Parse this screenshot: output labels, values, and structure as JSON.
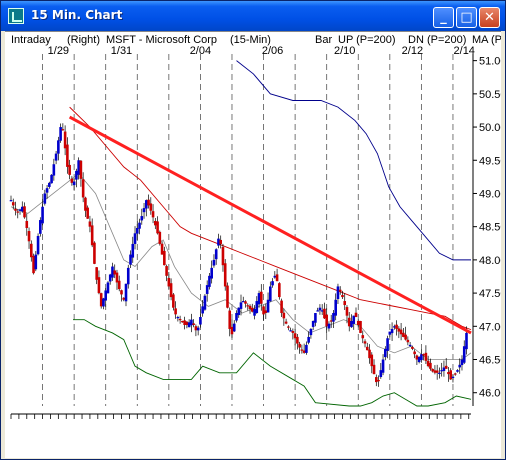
{
  "window": {
    "title": "15 Min. Chart",
    "minimize_glyph": "_",
    "maximize_glyph": "□",
    "close_glyph": "✕"
  },
  "header": {
    "intraday": "Intraday",
    "axis_side": "(Right)",
    "symbol": "MSFT - Microsoft Corp",
    "interval": "(15-Min)",
    "style": "Bar",
    "up_label": "UP (P=200)",
    "dn_label": "DN (P=200)",
    "ma_label": "MA (P="
  },
  "colors": {
    "up_label": "#0000cc",
    "dn_label": "#007700",
    "ma_label": "#cc0000",
    "up_bar": "#0000cc",
    "down_bar": "#cc0000",
    "trendline": "#ff2020",
    "upper_band": "#00008b",
    "lower_band": "#006400",
    "ma_line": "#cc0000",
    "grey_ma": "#888888"
  },
  "chart_data": {
    "type": "candlestick",
    "date_labels": [
      "1/29",
      "1/31",
      "2/04",
      "2/06",
      "2/10",
      "2/12",
      "2/14"
    ],
    "y_ticks": [
      "51.00",
      "50.50",
      "50.00",
      "49.50",
      "49.00",
      "48.50",
      "48.00",
      "47.50",
      "47.00",
      "46.50",
      "46.00"
    ],
    "ylim": [
      45.8,
      51.1
    ],
    "price_path": [
      [
        0,
        48.9
      ],
      [
        5,
        48.7
      ],
      [
        10,
        48.8
      ],
      [
        15,
        48.4
      ],
      [
        20,
        47.8
      ],
      [
        25,
        48.5
      ],
      [
        30,
        49.0
      ],
      [
        35,
        49.2
      ],
      [
        40,
        49.6
      ],
      [
        45,
        50.1
      ],
      [
        50,
        49.4
      ],
      [
        55,
        49.1
      ],
      [
        60,
        49.5
      ],
      [
        65,
        48.8
      ],
      [
        70,
        48.5
      ],
      [
        75,
        47.8
      ],
      [
        80,
        47.3
      ],
      [
        85,
        47.6
      ],
      [
        90,
        47.9
      ],
      [
        95,
        47.6
      ],
      [
        100,
        47.4
      ],
      [
        105,
        48.0
      ],
      [
        110,
        48.4
      ],
      [
        115,
        48.6
      ],
      [
        120,
        48.9
      ],
      [
        125,
        48.7
      ],
      [
        130,
        48.4
      ],
      [
        135,
        48.0
      ],
      [
        140,
        47.6
      ],
      [
        145,
        47.2
      ],
      [
        150,
        47.1
      ],
      [
        155,
        47.0
      ],
      [
        160,
        47.1
      ],
      [
        165,
        46.9
      ],
      [
        170,
        47.3
      ],
      [
        175,
        47.7
      ],
      [
        180,
        48.0
      ],
      [
        185,
        48.4
      ],
      [
        190,
        47.6
      ],
      [
        195,
        46.8
      ],
      [
        200,
        47.2
      ],
      [
        205,
        47.4
      ],
      [
        210,
        47.3
      ],
      [
        215,
        47.2
      ],
      [
        220,
        47.5
      ],
      [
        225,
        47.1
      ],
      [
        230,
        47.6
      ],
      [
        235,
        47.8
      ],
      [
        240,
        47.2
      ],
      [
        245,
        47.0
      ],
      [
        250,
        46.9
      ],
      [
        255,
        46.7
      ],
      [
        260,
        46.6
      ],
      [
        265,
        46.9
      ],
      [
        270,
        47.2
      ],
      [
        275,
        47.3
      ],
      [
        280,
        47.0
      ],
      [
        285,
        47.1
      ],
      [
        290,
        47.6
      ],
      [
        295,
        47.4
      ],
      [
        300,
        47.0
      ],
      [
        305,
        47.2
      ],
      [
        310,
        46.9
      ],
      [
        315,
        46.7
      ],
      [
        320,
        46.4
      ],
      [
        325,
        46.1
      ],
      [
        330,
        46.5
      ],
      [
        335,
        46.9
      ],
      [
        340,
        47.0
      ],
      [
        345,
        46.9
      ],
      [
        350,
        46.8
      ],
      [
        355,
        46.7
      ],
      [
        360,
        46.5
      ],
      [
        365,
        46.6
      ],
      [
        370,
        46.4
      ],
      [
        375,
        46.3
      ],
      [
        380,
        46.3
      ],
      [
        385,
        46.4
      ],
      [
        390,
        46.2
      ],
      [
        395,
        46.3
      ],
      [
        400,
        46.5
      ],
      [
        405,
        47.0
      ]
    ],
    "trendline": [
      [
        52,
        50.15
      ],
      [
        408,
        46.9
      ]
    ],
    "upper_band": [
      [
        200,
        51.0
      ],
      [
        215,
        50.8
      ],
      [
        230,
        50.5
      ],
      [
        250,
        50.4
      ],
      [
        275,
        50.4
      ],
      [
        290,
        50.3
      ],
      [
        305,
        50.1
      ],
      [
        315,
        49.9
      ],
      [
        325,
        49.6
      ],
      [
        335,
        49.1
      ],
      [
        345,
        48.8
      ],
      [
        355,
        48.6
      ],
      [
        365,
        48.4
      ],
      [
        380,
        48.1
      ],
      [
        392,
        48.0
      ],
      [
        408,
        48.0
      ]
    ],
    "lower_band": [
      [
        55,
        47.1
      ],
      [
        65,
        47.1
      ],
      [
        75,
        47.0
      ],
      [
        90,
        46.9
      ],
      [
        100,
        46.8
      ],
      [
        110,
        46.4
      ],
      [
        120,
        46.3
      ],
      [
        135,
        46.2
      ],
      [
        145,
        46.2
      ],
      [
        160,
        46.2
      ],
      [
        170,
        46.4
      ],
      [
        185,
        46.3
      ],
      [
        200,
        46.3
      ],
      [
        215,
        46.6
      ],
      [
        230,
        46.4
      ],
      [
        250,
        46.2
      ],
      [
        260,
        46.1
      ],
      [
        270,
        45.85
      ],
      [
        300,
        45.8
      ],
      [
        310,
        45.8
      ],
      [
        320,
        45.85
      ],
      [
        330,
        45.95
      ],
      [
        340,
        46.0
      ],
      [
        350,
        45.9
      ],
      [
        360,
        45.8
      ],
      [
        370,
        45.8
      ],
      [
        385,
        45.85
      ],
      [
        395,
        45.95
      ],
      [
        408,
        45.9
      ]
    ],
    "ma_line": [
      [
        52,
        50.3
      ],
      [
        70,
        50.0
      ],
      [
        85,
        49.7
      ],
      [
        100,
        49.4
      ],
      [
        115,
        49.2
      ],
      [
        130,
        48.9
      ],
      [
        140,
        48.7
      ],
      [
        150,
        48.5
      ],
      [
        160,
        48.4
      ],
      [
        175,
        48.3
      ],
      [
        190,
        48.2
      ],
      [
        205,
        48.1
      ],
      [
        220,
        48.0
      ],
      [
        235,
        47.9
      ],
      [
        250,
        47.8
      ],
      [
        265,
        47.7
      ],
      [
        280,
        47.6
      ],
      [
        295,
        47.5
      ],
      [
        310,
        47.4
      ],
      [
        325,
        47.35
      ],
      [
        340,
        47.3
      ],
      [
        355,
        47.25
      ],
      [
        370,
        47.2
      ],
      [
        385,
        47.15
      ],
      [
        400,
        47.0
      ],
      [
        408,
        46.95
      ]
    ],
    "grey_ma": [
      [
        0,
        48.8
      ],
      [
        15,
        48.7
      ],
      [
        30,
        48.9
      ],
      [
        45,
        49.1
      ],
      [
        60,
        49.3
      ],
      [
        75,
        49.0
      ],
      [
        90,
        48.4
      ],
      [
        100,
        48.0
      ],
      [
        110,
        47.9
      ],
      [
        125,
        48.2
      ],
      [
        135,
        48.3
      ],
      [
        145,
        47.9
      ],
      [
        160,
        47.5
      ],
      [
        175,
        47.3
      ],
      [
        190,
        47.4
      ],
      [
        205,
        47.2
      ],
      [
        220,
        47.3
      ],
      [
        235,
        47.4
      ],
      [
        250,
        47.1
      ],
      [
        265,
        46.9
      ],
      [
        280,
        47.0
      ],
      [
        295,
        47.1
      ],
      [
        310,
        47.0
      ],
      [
        325,
        46.7
      ],
      [
        340,
        46.6
      ],
      [
        355,
        46.7
      ],
      [
        370,
        46.5
      ],
      [
        385,
        46.5
      ],
      [
        400,
        46.5
      ],
      [
        408,
        46.6
      ]
    ]
  }
}
